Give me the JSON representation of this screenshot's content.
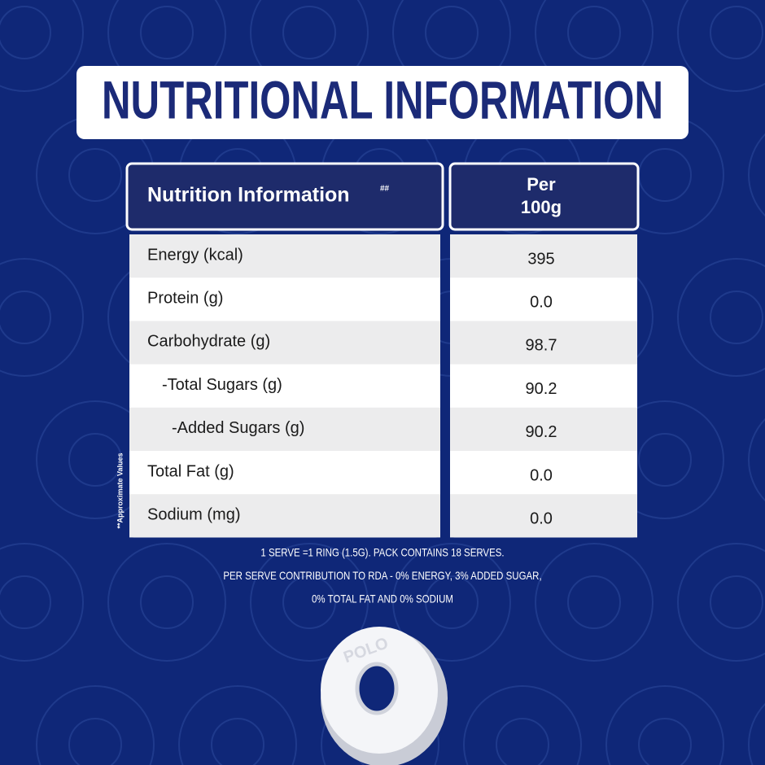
{
  "header": {
    "title": "NUTRITIONAL INFORMATION"
  },
  "table": {
    "columns": [
      "Nutrition Information",
      "Per 100g"
    ],
    "column_note": "##",
    "rows": [
      [
        "Energy (kcal)",
        "395"
      ],
      [
        "Protein (g)",
        "0.0"
      ],
      [
        "Carbohydrate (g)",
        "98.7"
      ],
      [
        "-Total Sugars (g)",
        "90.2"
      ],
      [
        "-Added Sugars (g)",
        "90.2"
      ],
      [
        "Total Fat (g)",
        "0.0"
      ],
      [
        "Sodium (mg)",
        "0.0"
      ]
    ]
  },
  "side_note": "**Approximate Values",
  "footnotes": [
    "1 SERVE =1 RING (1.5G). PACK CONTAINS 18 SERVES.",
    "PER SERVE CONTRIBUTION TO RDA - 0% ENERGY, 3% ADDED SUGAR,",
    "0% TOTAL FAT AND 0% SODIUM"
  ],
  "product_mark": "POLO"
}
